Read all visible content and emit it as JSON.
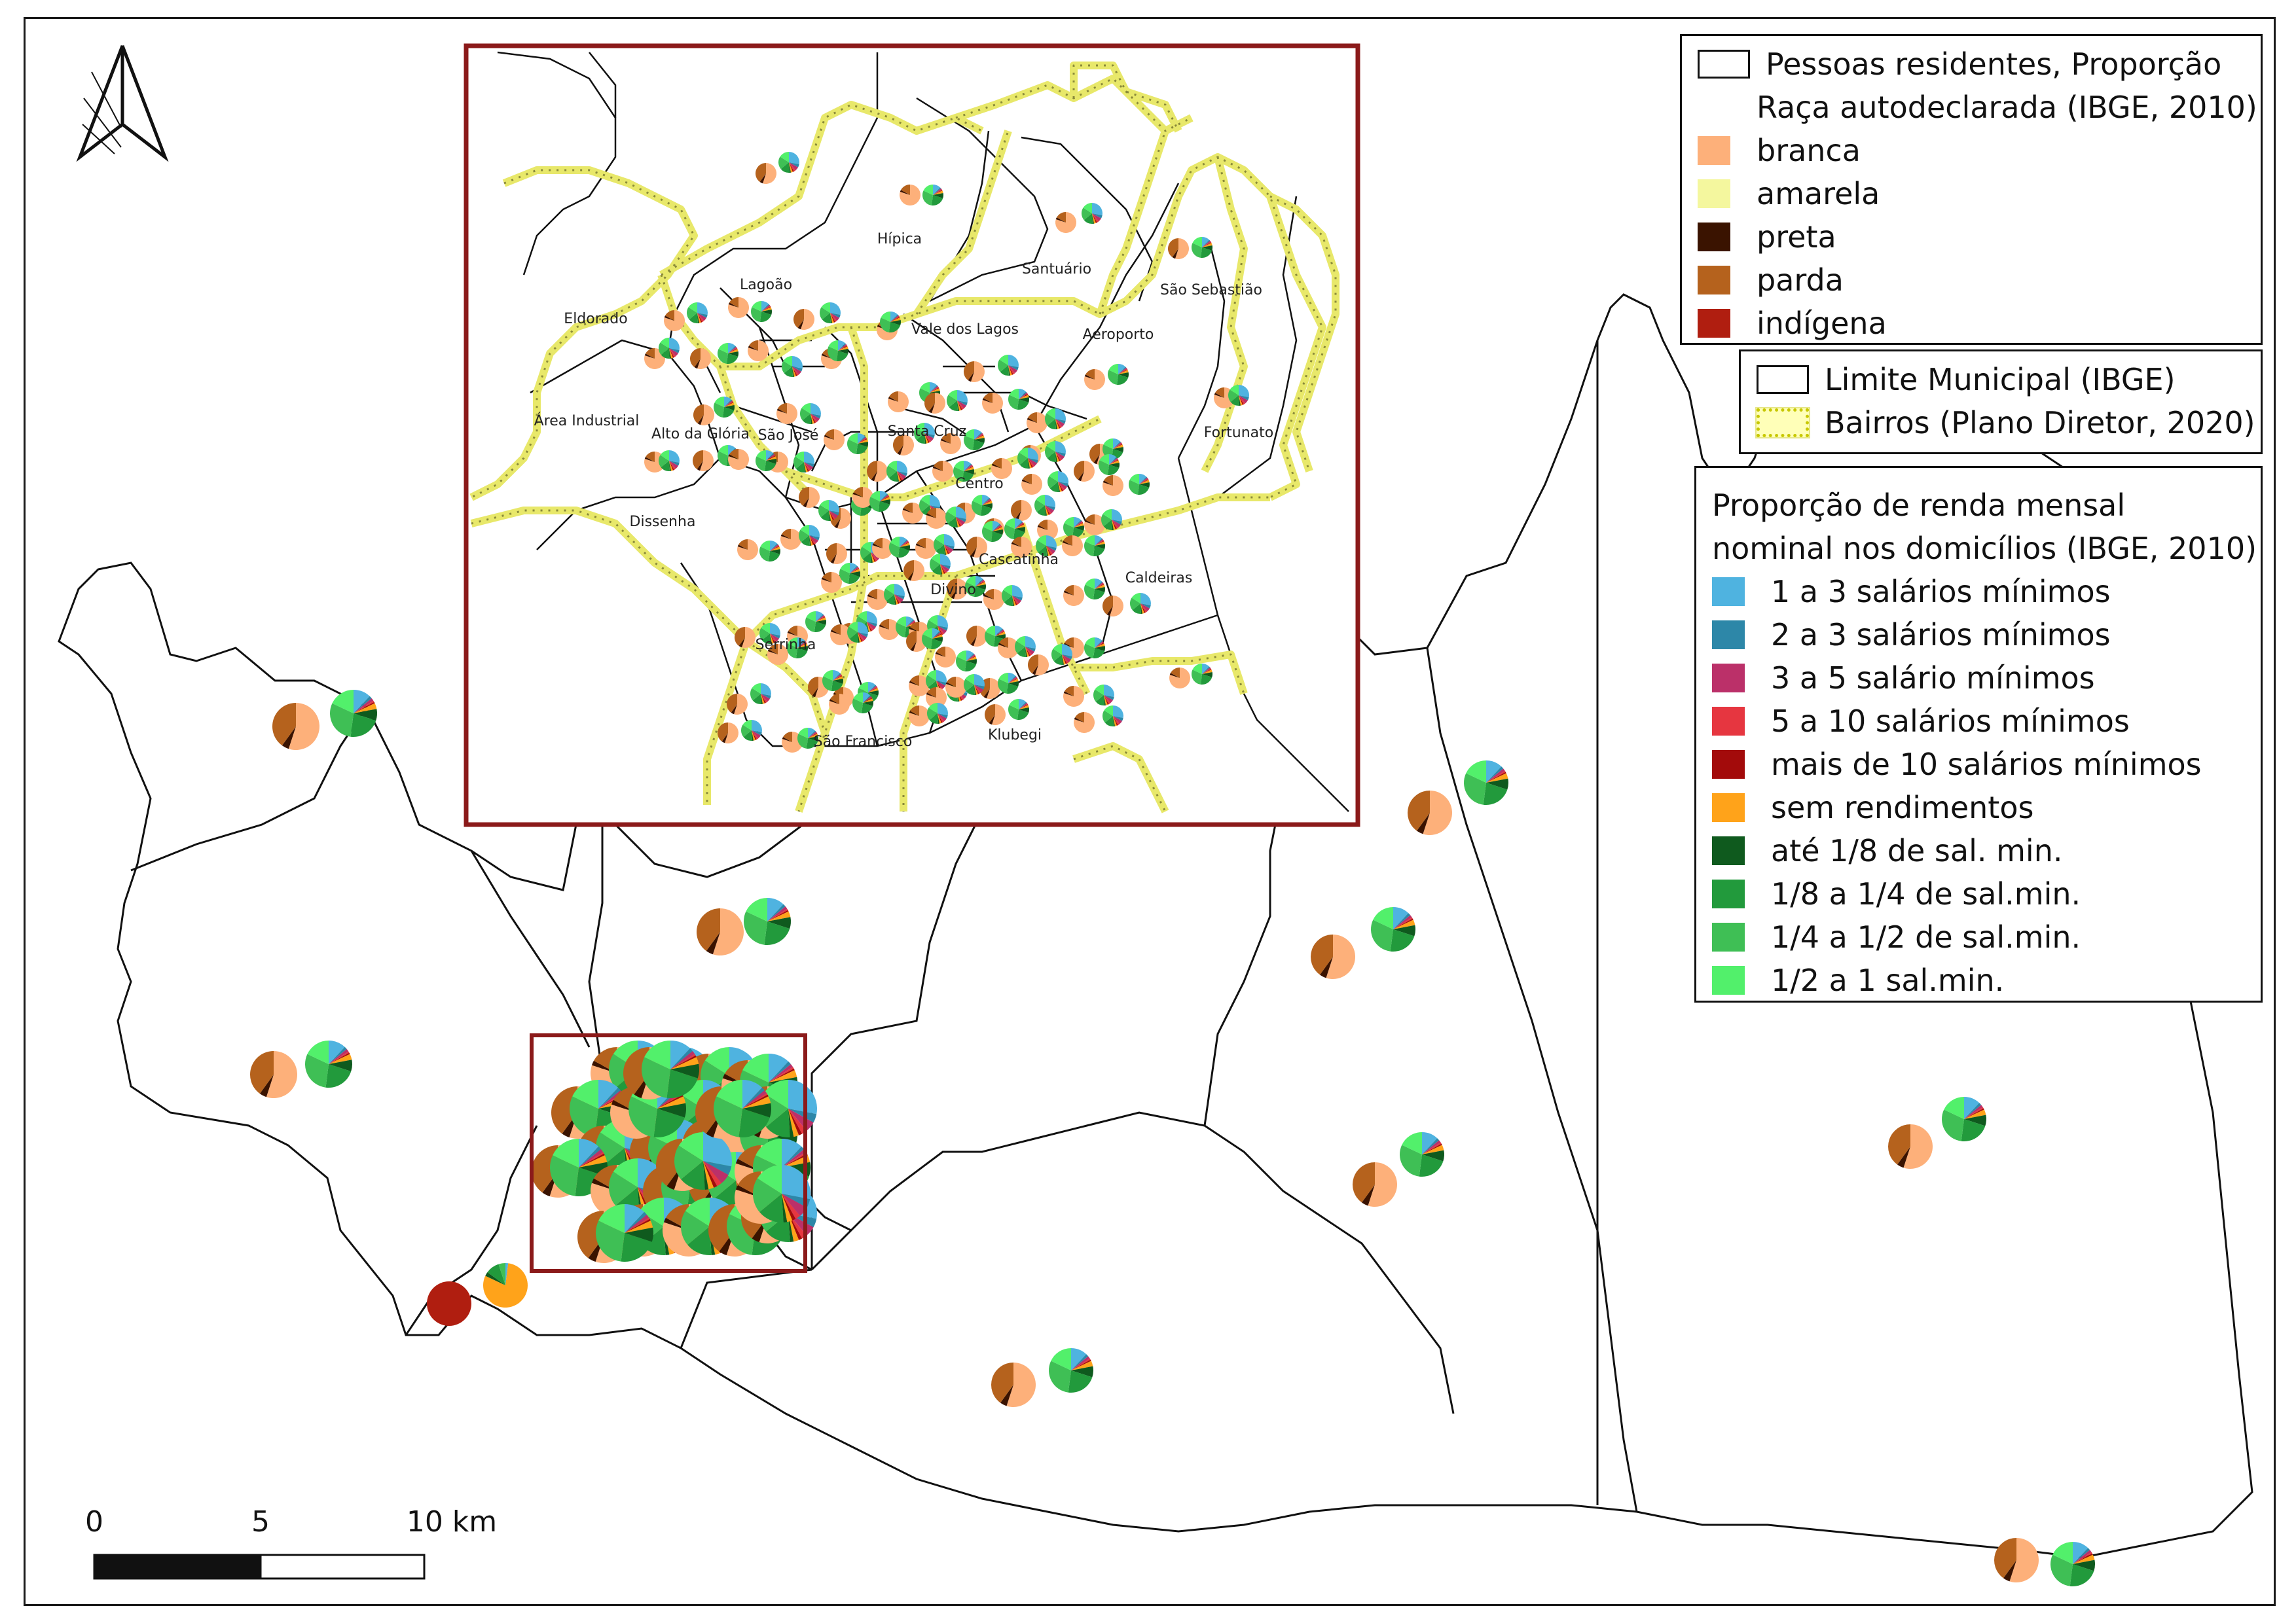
{
  "legend_race": {
    "title_line1": "Pessoas residentes, Proporção",
    "title_line2": "Raça autodeclarada (IBGE, 2010)",
    "items": [
      {
        "label": "branca",
        "color": "#fdb07a"
      },
      {
        "label": "amarela",
        "color": "#f4f79e"
      },
      {
        "label": "preta",
        "color": "#3a1300"
      },
      {
        "label": "parda",
        "color": "#b5621d"
      },
      {
        "label": "indígena",
        "color": "#b01e10"
      }
    ]
  },
  "legend_limits": {
    "municipal_label": "Limite Municipal (IBGE)",
    "bairros_label": "Bairros (Plano Diretor, 2020)"
  },
  "legend_income": {
    "title_line1": "Proporção de renda mensal",
    "title_line2": "nominal nos domicílios (IBGE, 2010)",
    "items": [
      {
        "label": "1 a 3 salários mínimos",
        "color": "#4fb3e0"
      },
      {
        "label": "2 a 3 salários mínimos",
        "color": "#2d87a8"
      },
      {
        "label": "3 a 5 salário mínimos",
        "color": "#bb3069"
      },
      {
        "label": "5 a 10 salários mínimos",
        "color": "#e63640"
      },
      {
        "label": "mais de 10 salários mínimos",
        "color": "#a30b0b"
      },
      {
        "label": "sem rendimentos",
        "color": "#ffa31a"
      },
      {
        "label": "até 1/8 de sal. min.",
        "color": "#0f5a1e"
      },
      {
        "label": "1/8 a 1/4 de sal.min.",
        "color": "#229a3c"
      },
      {
        "label": "1/4 a 1/2 de sal.min.",
        "color": "#3fbf55"
      },
      {
        "label": "1/2 a 1 sal.min.",
        "color": "#52f06b"
      }
    ]
  },
  "scale_bar": {
    "label_0": "0",
    "label_5": "5",
    "label_10": "10 km"
  },
  "inset_labels": [
    "Hípica",
    "Santuário",
    "São Sebastião",
    "Lagoão",
    "Eldorado",
    "Vale dos Lagos",
    "Aeroporto",
    "Área Industrial",
    "Alto da Glória",
    "São José",
    "Santa Cruz",
    "Fortunato",
    "Centro",
    "Dissenha",
    "Cascatinha",
    "Caldeiras",
    "Divino",
    "Serrinha",
    "São Francisco",
    "Klubegi"
  ],
  "colors": {
    "inset_frame": "#8b1a1a",
    "bairro_line": "#e8e86a",
    "bairro_dots": "#8a8a3a"
  }
}
